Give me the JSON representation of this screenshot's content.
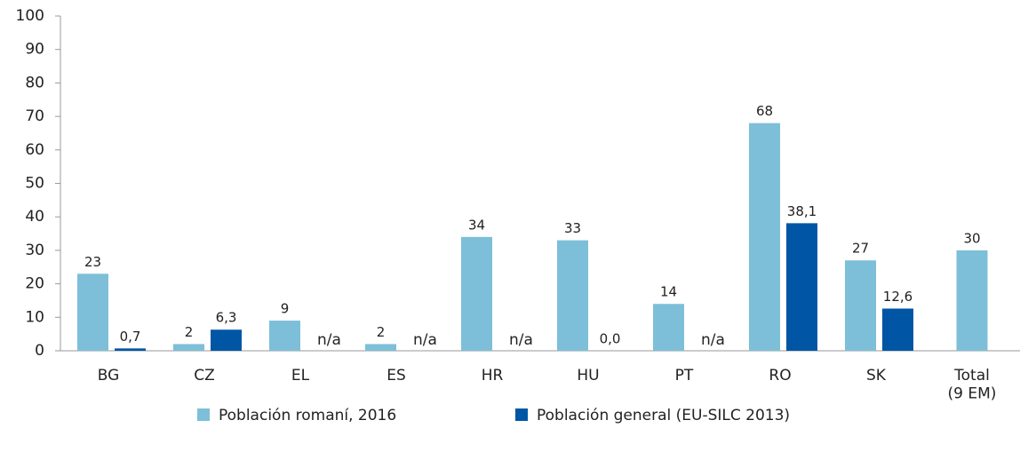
{
  "chart_data": {
    "type": "bar",
    "categories": [
      "BG",
      "CZ",
      "EL",
      "ES",
      "HR",
      "HU",
      "PT",
      "RO",
      "SK",
      "Total\n(9 EM)"
    ],
    "series": [
      {
        "name": "Población romaní, 2016",
        "color": "#7dbfd9",
        "values": [
          23,
          2,
          9,
          2,
          34,
          33,
          14,
          68,
          27,
          30
        ]
      },
      {
        "name": "Población general (EU-SILC 2013)",
        "color": "#0056a4",
        "values": [
          0.7,
          6.3,
          null,
          null,
          null,
          0,
          null,
          38.1,
          12.6,
          null
        ],
        "value_labels": [
          "0,7",
          "6,3",
          "n/a",
          "n/a",
          "n/a",
          "0,0",
          "n/a",
          "38,1",
          "12,6",
          null
        ]
      }
    ],
    "ylim": [
      0,
      100
    ],
    "yticks": [
      0,
      10,
      20,
      30,
      40,
      50,
      60,
      70,
      80,
      90,
      100
    ],
    "grid": false,
    "legend": "bottom"
  }
}
